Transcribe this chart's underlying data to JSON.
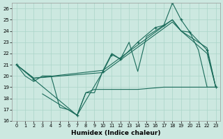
{
  "xlabel": "Humidex (Indice chaleur)",
  "bg_color": "#cce8e0",
  "grid_color": "#aad4c8",
  "line_color": "#1a6b5a",
  "xlim": [
    -0.5,
    23.5
  ],
  "ylim": [
    16,
    26.5
  ],
  "xticks": [
    0,
    1,
    2,
    3,
    4,
    5,
    6,
    7,
    8,
    9,
    10,
    11,
    12,
    13,
    14,
    15,
    16,
    17,
    18,
    19,
    20,
    21,
    22,
    23
  ],
  "yticks": [
    16,
    17,
    18,
    19,
    20,
    21,
    22,
    23,
    24,
    25,
    26
  ],
  "line1_x": [
    0,
    1,
    2,
    3,
    4,
    5,
    6,
    7,
    8,
    9,
    10,
    11,
    12,
    13,
    14,
    15,
    16,
    17,
    18,
    19,
    20,
    21,
    22,
    23
  ],
  "line1_y": [
    21.0,
    20.0,
    19.5,
    20.0,
    20.0,
    17.2,
    17.0,
    16.5,
    18.5,
    18.5,
    20.5,
    22.0,
    21.5,
    23.0,
    20.4,
    23.5,
    24.0,
    24.5,
    25.0,
    24.0,
    23.9,
    22.3,
    19.0,
    19.0
  ],
  "line2_x": [
    0,
    2,
    10,
    18,
    19,
    22,
    23
  ],
  "line2_y": [
    21.0,
    19.8,
    20.5,
    25.0,
    24.0,
    22.5,
    19.0
  ],
  "line3_x": [
    0,
    2,
    10,
    18,
    19,
    22,
    23
  ],
  "line3_y": [
    21.0,
    19.8,
    20.3,
    24.8,
    24.0,
    22.0,
    19.0
  ],
  "line4_x": [
    3,
    7,
    8,
    9,
    10,
    14,
    17,
    19,
    22,
    23
  ],
  "line4_y": [
    18.4,
    16.5,
    18.5,
    18.8,
    18.8,
    18.8,
    19.0,
    19.0,
    19.0,
    19.0
  ],
  "marked_x": [
    0,
    2,
    7,
    10,
    11,
    12,
    14,
    16,
    17,
    18,
    19,
    20,
    22,
    23
  ],
  "marked_y": [
    21.0,
    19.7,
    16.5,
    20.4,
    21.9,
    21.5,
    23.0,
    24.3,
    24.5,
    26.5,
    25.0,
    23.9,
    22.3,
    19.0
  ]
}
